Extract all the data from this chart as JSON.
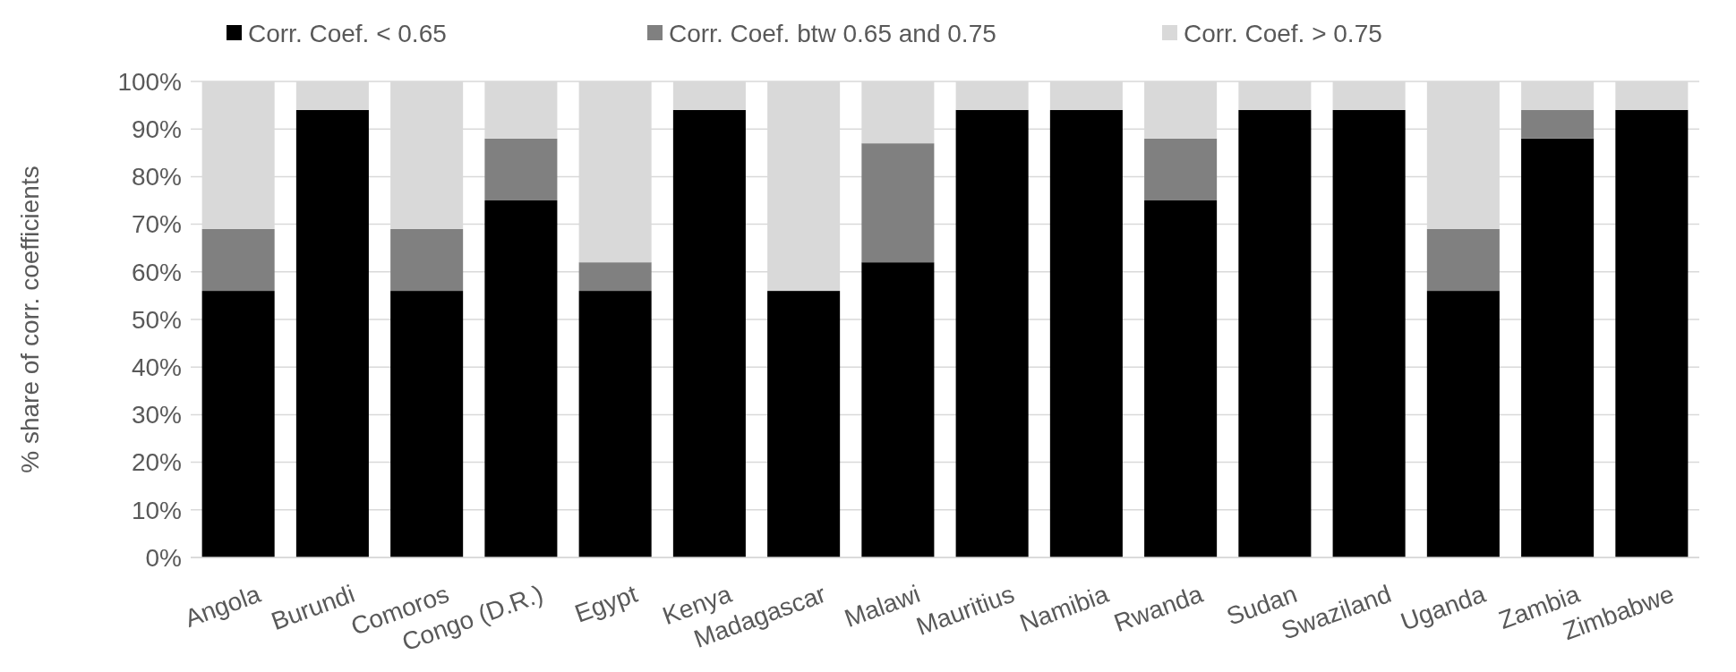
{
  "chart_data": {
    "type": "bar",
    "stacked": true,
    "ylabel": "% share of corr. coefficients",
    "categories": [
      "Angola",
      "Burundi",
      "Comoros",
      "Congo (D.R.)",
      "Egypt",
      "Kenya",
      "Madagascar",
      "Malawi",
      "Mauritius",
      "Namibia",
      "Rwanda",
      "Sudan",
      "Swaziland",
      "Uganda",
      "Zambia",
      "Zimbabwe"
    ],
    "series": [
      {
        "name": "Corr. Coef. < 0.65",
        "color": "#000000",
        "values": [
          56,
          94,
          56,
          75,
          56,
          94,
          56,
          62,
          94,
          94,
          75,
          94,
          94,
          56,
          88,
          94
        ]
      },
      {
        "name": "Corr. Coef. btw 0.65 and 0.75",
        "color": "#808080",
        "values": [
          13,
          0,
          13,
          13,
          6,
          0,
          0,
          25,
          0,
          0,
          13,
          0,
          0,
          13,
          6,
          0
        ]
      },
      {
        "name": "Corr. Coef. > 0.75",
        "color": "#d9d9d9",
        "values": [
          31,
          6,
          31,
          12,
          38,
          6,
          44,
          13,
          6,
          6,
          12,
          6,
          6,
          31,
          6,
          6
        ]
      }
    ],
    "ylim": [
      0,
      100
    ],
    "yticks": [
      {
        "value": 0,
        "label": "0%"
      },
      {
        "value": 10,
        "label": "10%"
      },
      {
        "value": 20,
        "label": "20%"
      },
      {
        "value": 30,
        "label": "30%"
      },
      {
        "value": 40,
        "label": "40%"
      },
      {
        "value": 50,
        "label": "50%"
      },
      {
        "value": 60,
        "label": "60%"
      },
      {
        "value": 70,
        "label": "70%"
      },
      {
        "value": 80,
        "label": "80%"
      },
      {
        "value": 90,
        "label": "90%"
      },
      {
        "value": 100,
        "label": "100%"
      }
    ],
    "grid": "y",
    "legend": "top"
  }
}
